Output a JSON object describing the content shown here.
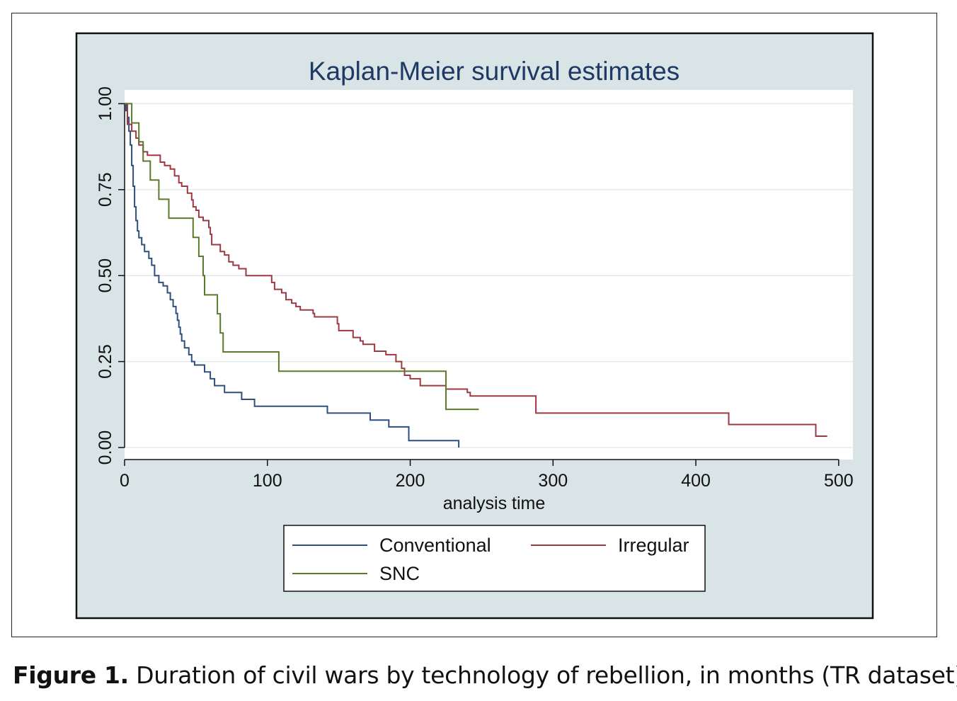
{
  "caption": {
    "label": "Figure 1.",
    "text": " Duration of civil wars by technology of rebellion, in months (TR dataset)."
  },
  "colors": {
    "outer_background": "#d8e4e6",
    "plot_background": "#ffffff",
    "grid": "#e3eaec",
    "title": "#1f3864"
  },
  "chart_data": {
    "type": "line",
    "step": true,
    "title": "Kaplan-Meier survival estimates",
    "xlabel": "analysis time",
    "ylabel": "",
    "xlim": [
      0,
      510
    ],
    "ylim": [
      -0.035,
      1.04
    ],
    "xticks": [
      0,
      100,
      200,
      300,
      400,
      500
    ],
    "xtick_labels": [
      "0",
      "100",
      "200",
      "300",
      "400",
      "500"
    ],
    "yticks": [
      0,
      0.25,
      0.5,
      0.75,
      1
    ],
    "ytick_labels": [
      "0.00",
      "0.25",
      "0.50",
      "0.75",
      "1.00"
    ],
    "grid": true,
    "legend_position": "bottom",
    "series": [
      {
        "name": "Conventional",
        "color": "#2f4f7f",
        "points": [
          [
            0,
            1
          ],
          [
            1,
            0.98
          ],
          [
            2,
            0.96
          ],
          [
            3,
            0.92
          ],
          [
            4,
            0.88
          ],
          [
            5,
            0.82
          ],
          [
            6,
            0.76
          ],
          [
            7,
            0.7
          ],
          [
            8,
            0.66
          ],
          [
            9,
            0.63
          ],
          [
            10,
            0.61
          ],
          [
            12,
            0.59
          ],
          [
            14,
            0.57
          ],
          [
            17,
            0.55
          ],
          [
            19,
            0.53
          ],
          [
            21,
            0.5
          ],
          [
            24,
            0.48
          ],
          [
            27,
            0.47
          ],
          [
            30,
            0.45
          ],
          [
            32,
            0.43
          ],
          [
            34,
            0.41
          ],
          [
            36,
            0.39
          ],
          [
            37,
            0.37
          ],
          [
            38,
            0.35
          ],
          [
            39,
            0.33
          ],
          [
            40,
            0.31
          ],
          [
            42,
            0.29
          ],
          [
            45,
            0.27
          ],
          [
            47,
            0.25
          ],
          [
            49,
            0.24
          ],
          [
            56,
            0.22
          ],
          [
            60,
            0.2
          ],
          [
            63,
            0.18
          ],
          [
            70,
            0.16
          ],
          [
            82,
            0.14
          ],
          [
            91,
            0.12
          ],
          [
            142,
            0.1
          ],
          [
            172,
            0.08
          ],
          [
            185,
            0.06
          ],
          [
            199,
            0.02
          ],
          [
            234,
            0.02
          ],
          [
            234,
            0.0
          ]
        ]
      },
      {
        "name": "Irregular",
        "color": "#9c3a42",
        "points": [
          [
            0,
            1
          ],
          [
            2,
            0.94
          ],
          [
            5,
            0.92
          ],
          [
            8,
            0.9
          ],
          [
            10,
            0.88
          ],
          [
            13,
            0.86
          ],
          [
            16,
            0.85
          ],
          [
            25,
            0.83
          ],
          [
            28,
            0.82
          ],
          [
            32,
            0.81
          ],
          [
            35,
            0.79
          ],
          [
            38,
            0.77
          ],
          [
            40,
            0.76
          ],
          [
            44,
            0.74
          ],
          [
            47,
            0.72
          ],
          [
            48,
            0.7
          ],
          [
            50,
            0.69
          ],
          [
            52,
            0.67
          ],
          [
            55,
            0.66
          ],
          [
            59,
            0.64
          ],
          [
            60,
            0.62
          ],
          [
            61,
            0.59
          ],
          [
            67,
            0.57
          ],
          [
            70,
            0.56
          ],
          [
            73,
            0.54
          ],
          [
            76,
            0.53
          ],
          [
            80,
            0.52
          ],
          [
            85,
            0.5
          ],
          [
            103,
            0.48
          ],
          [
            105,
            0.46
          ],
          [
            110,
            0.45
          ],
          [
            113,
            0.43
          ],
          [
            117,
            0.42
          ],
          [
            120,
            0.41
          ],
          [
            123,
            0.4
          ],
          [
            132,
            0.39
          ],
          [
            133,
            0.38
          ],
          [
            149,
            0.36
          ],
          [
            150,
            0.34
          ],
          [
            160,
            0.32
          ],
          [
            165,
            0.31
          ],
          [
            167,
            0.3
          ],
          [
            175,
            0.28
          ],
          [
            183,
            0.27
          ],
          [
            190,
            0.25
          ],
          [
            194,
            0.23
          ],
          [
            196,
            0.21
          ],
          [
            200,
            0.2
          ],
          [
            207,
            0.18
          ],
          [
            210,
            0.18
          ],
          [
            225,
            0.17
          ],
          [
            240,
            0.16
          ],
          [
            242,
            0.15
          ],
          [
            288,
            0.14
          ],
          [
            288,
            0.1
          ],
          [
            423,
            0.1
          ],
          [
            423,
            0.067
          ],
          [
            484,
            0.067
          ],
          [
            484,
            0.033
          ],
          [
            492,
            0.033
          ]
        ]
      },
      {
        "name": "SNC",
        "color": "#5c7a2a",
        "points": [
          [
            0,
            1
          ],
          [
            5,
            1
          ],
          [
            5,
            0.944
          ],
          [
            10,
            0.944
          ],
          [
            10,
            0.889
          ],
          [
            13,
            0.889
          ],
          [
            13,
            0.833
          ],
          [
            18,
            0.833
          ],
          [
            18,
            0.778
          ],
          [
            24,
            0.778
          ],
          [
            24,
            0.722
          ],
          [
            31,
            0.722
          ],
          [
            31,
            0.667
          ],
          [
            48,
            0.667
          ],
          [
            48,
            0.611
          ],
          [
            52,
            0.611
          ],
          [
            52,
            0.556
          ],
          [
            55,
            0.556
          ],
          [
            55,
            0.5
          ],
          [
            56,
            0.5
          ],
          [
            56,
            0.444
          ],
          [
            65,
            0.444
          ],
          [
            65,
            0.389
          ],
          [
            67,
            0.389
          ],
          [
            67,
            0.333
          ],
          [
            69,
            0.333
          ],
          [
            69,
            0.278
          ],
          [
            108,
            0.278
          ],
          [
            108,
            0.222
          ],
          [
            225,
            0.222
          ],
          [
            225,
            0.111
          ],
          [
            248,
            0.111
          ]
        ]
      }
    ]
  }
}
